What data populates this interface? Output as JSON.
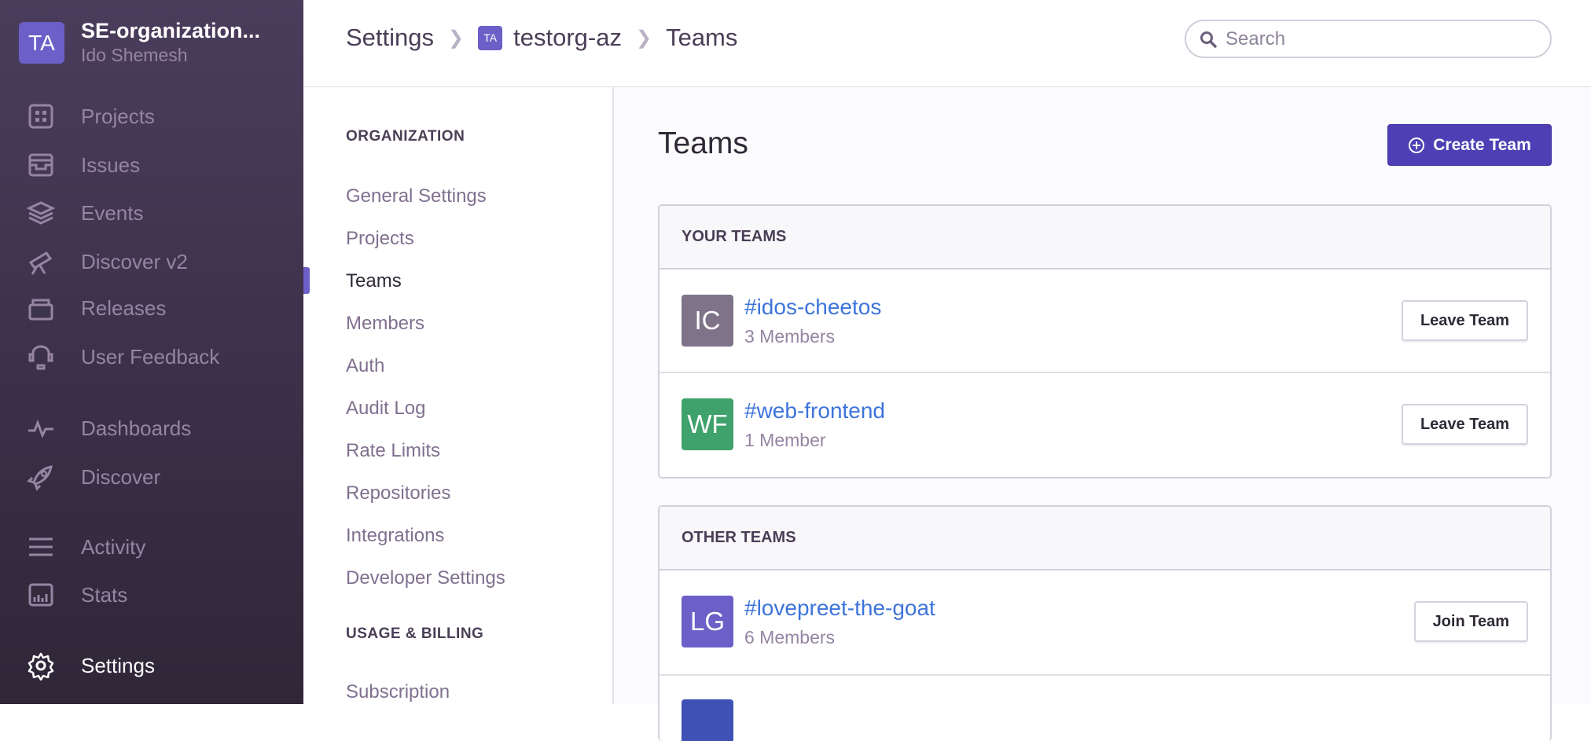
{
  "org": {
    "initials": "TA",
    "name": "SE-organization...",
    "user": "Ido Shemesh"
  },
  "nav": [
    {
      "label": "Projects",
      "icon": "projects-icon"
    },
    {
      "label": "Issues",
      "icon": "issues-icon"
    },
    {
      "label": "Events",
      "icon": "events-icon"
    },
    {
      "label": "Discover v2",
      "icon": "telescope-icon"
    },
    {
      "label": "Releases",
      "icon": "releases-icon"
    },
    {
      "label": "User Feedback",
      "icon": "feedback-icon"
    },
    {
      "label": "Dashboards",
      "icon": "pulse-icon"
    },
    {
      "label": "Discover",
      "icon": "rocket-icon"
    },
    {
      "label": "Activity",
      "icon": "activity-icon"
    },
    {
      "label": "Stats",
      "icon": "stats-icon"
    },
    {
      "label": "Settings",
      "icon": "gear-icon"
    }
  ],
  "breadcrumb": {
    "settings": "Settings",
    "org_initials": "TA",
    "org": "testorg-az",
    "page": "Teams"
  },
  "search": {
    "placeholder": "Search"
  },
  "subnav": {
    "org_heading": "ORGANIZATION",
    "items": [
      "General Settings",
      "Projects",
      "Teams",
      "Members",
      "Auth",
      "Audit Log",
      "Rate Limits",
      "Repositories",
      "Integrations",
      "Developer Settings"
    ],
    "billing_heading": "USAGE & BILLING",
    "billing_items": [
      "Subscription"
    ]
  },
  "main": {
    "title": "Teams",
    "create_label": "Create Team",
    "your_teams": {
      "heading": "YOUR TEAMS",
      "teams": [
        {
          "initials": "IC",
          "name": "#idos-cheetos",
          "members": "3 Members",
          "action": "Leave Team",
          "color": "#7e7389"
        },
        {
          "initials": "WF",
          "name": "#web-frontend",
          "members": "1 Member",
          "action": "Leave Team",
          "color": "#3fa16b"
        }
      ]
    },
    "other_teams": {
      "heading": "OTHER TEAMS",
      "teams": [
        {
          "initials": "LG",
          "name": "#lovepreet-the-goat",
          "members": "6 Members",
          "action": "Join Team",
          "color": "#6c5fc7"
        }
      ]
    }
  }
}
